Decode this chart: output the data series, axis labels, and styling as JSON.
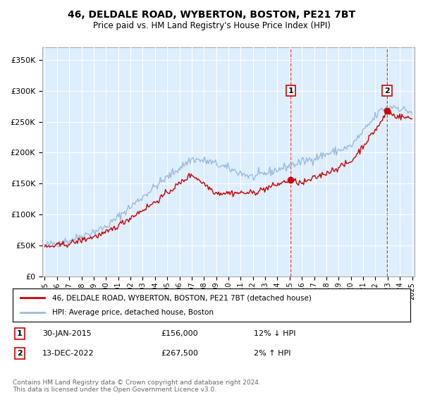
{
  "title": "46, DELDALE ROAD, WYBERTON, BOSTON, PE21 7BT",
  "subtitle": "Price paid vs. HM Land Registry's House Price Index (HPI)",
  "background_color": "#ffffff",
  "plot_bg_color": "#ddeeff",
  "grid_color": "#ffffff",
  "hpi_color": "#99bbdd",
  "price_color": "#cc0000",
  "vline_color": "#cc0000",
  "ylim": [
    0,
    370000
  ],
  "yticks": [
    0,
    50000,
    100000,
    150000,
    200000,
    250000,
    300000,
    350000
  ],
  "transaction1_date": 2015.08,
  "transaction1_price": 156000,
  "transaction1_label": "1",
  "transaction2_date": 2022.95,
  "transaction2_price": 267500,
  "transaction2_label": "2",
  "legend_line1": "46, DELDALE ROAD, WYBERTON, BOSTON, PE21 7BT (detached house)",
  "legend_line2": "HPI: Average price, detached house, Boston",
  "note1_label": "1",
  "note1_date": "30-JAN-2015",
  "note1_price": "£156,000",
  "note1_hpi": "12% ↓ HPI",
  "note2_label": "2",
  "note2_date": "13-DEC-2022",
  "note2_price": "£267,500",
  "note2_hpi": "2% ↑ HPI",
  "footer": "Contains HM Land Registry data © Crown copyright and database right 2024.\nThis data is licensed under the Open Government Licence v3.0."
}
